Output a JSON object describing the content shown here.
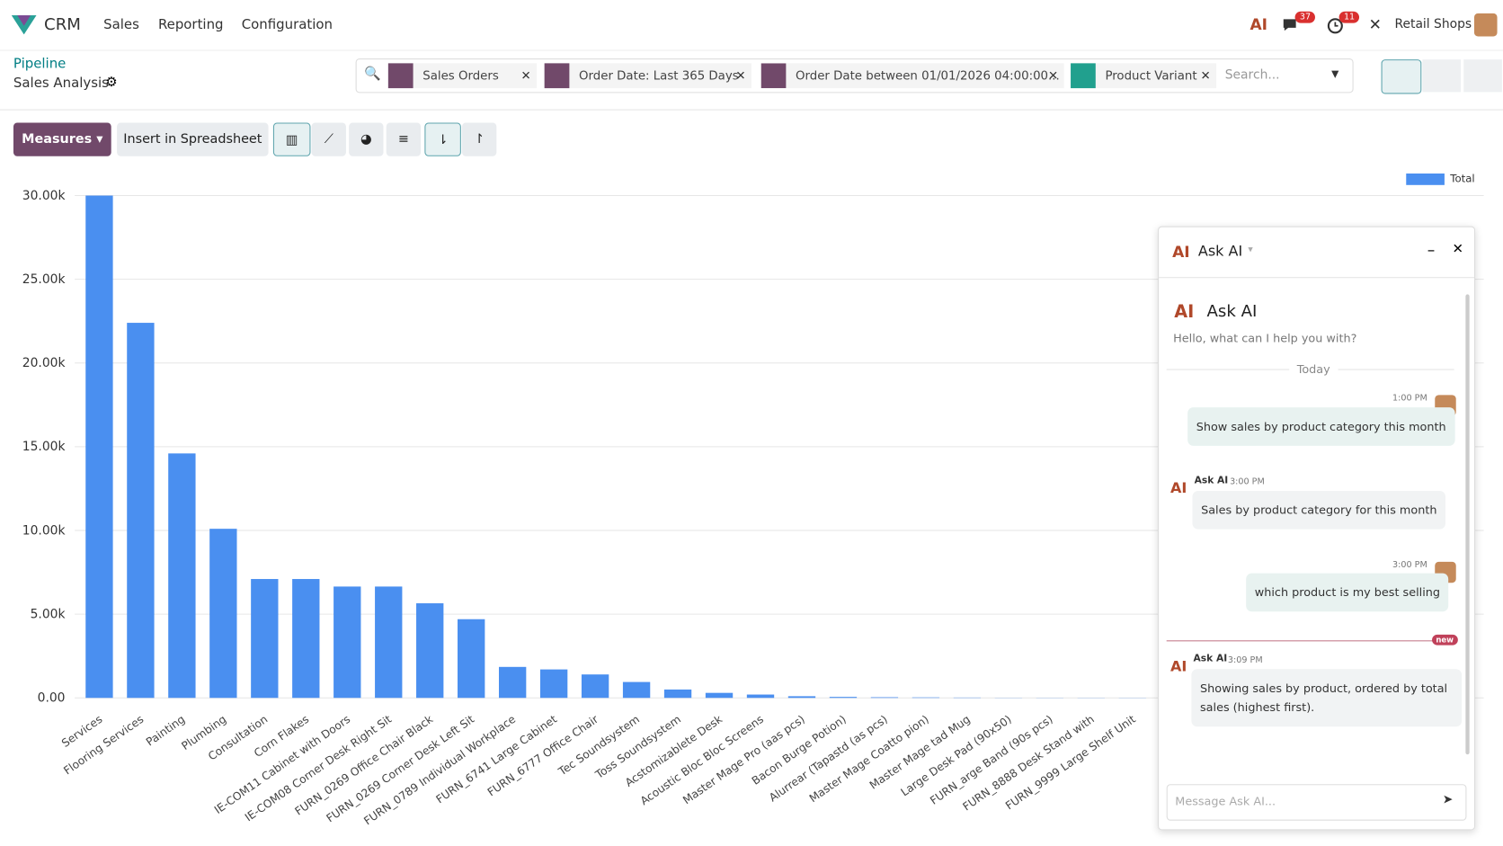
{
  "navbar": {
    "app": "CRM",
    "menus": [
      "Sales",
      "Reporting",
      "Configuration"
    ],
    "messages_badge": 37,
    "activities_badge": 11,
    "company": "Retail Shops"
  },
  "breadcrumb": {
    "parent": "Pipeline",
    "current": "Sales Analysis"
  },
  "search": {
    "facets": [
      "Sales Orders",
      "Order Date: Last 365 Days",
      "Order Date between 01/01/2026 04:00:00...",
      "Product Variant"
    ],
    "placeholder": "Search..."
  },
  "toolbar": {
    "measures": "Measures",
    "insert": "Insert in Spreadsheet"
  },
  "chart_data": {
    "type": "bar",
    "legend_position": "top-right",
    "grid": true,
    "categories": [
      "Services",
      "Flooring Services",
      "Painting",
      "Plumbing",
      "Consultation",
      "Corn Flakes",
      "IE-COM11 Cabinet with Doors",
      "IE-COM08 Corner Desk Right Sit",
      "FURN_0269 Office Chair Black",
      "FURN_0269 Corner Desk Left Sit",
      "FURN_0789 Individual Workplace",
      "FURN_6741 Large Cabinet",
      "FURN_6777 Office Chair",
      "Tec Soundsystem",
      "Toss Soundsystem",
      "Acstomizablete Desk",
      "Acoustic Bloc Bloc Screens",
      "Master Mage Pro (aas pcs)",
      "Bacon Burge Potion)",
      "Alurrear (Tapastd (as pcs)",
      "Master Mage Coatto pion)",
      "Master Mage tad Mug",
      "Large Desk Pad (90x50)",
      "FURN_arge Band (90s pcs)",
      "FURN_8888 Desk Stand with",
      "FURN_9999 Large Shelf Unit"
    ],
    "series": [
      {
        "name": "Total",
        "color": "#4a8ff0",
        "values": [
          30000,
          22400,
          14600,
          10100,
          7100,
          7100,
          6650,
          6650,
          5650,
          4700,
          1850,
          1700,
          1400,
          950,
          500,
          300,
          200,
          100,
          60,
          40,
          30,
          20,
          10,
          10,
          10,
          10
        ]
      }
    ],
    "ylim": [
      0,
      30000
    ],
    "yticks": [
      {
        "value": 0,
        "label": "0.00"
      },
      {
        "value": 5000,
        "label": "5.00k"
      },
      {
        "value": 10000,
        "label": "10.00k"
      },
      {
        "value": 15000,
        "label": "15.00k"
      },
      {
        "value": 20000,
        "label": "20.00k"
      },
      {
        "value": 25000,
        "label": "25.00k"
      },
      {
        "value": 30000,
        "label": "30.00k"
      }
    ]
  },
  "ai_panel": {
    "title": "Ask AI",
    "heading": "Ask AI",
    "greeting": "Hello, what can I help you with?",
    "divider": "Today",
    "new_marker": "new",
    "input_placeholder": "Message Ask AI...",
    "messages": [
      {
        "time": "1:00 PM",
        "text": "Show sales by product category this month"
      },
      {
        "author": "Ask AI",
        "time": "3:00 PM",
        "text": "Sales by product category for this month"
      },
      {
        "time": "3:00 PM",
        "text": "which product is my best selling"
      },
      {
        "author": "Ask AI",
        "time": "3:09 PM",
        "text": "Showing sales by product, ordered by total sales (highest first)."
      }
    ]
  }
}
